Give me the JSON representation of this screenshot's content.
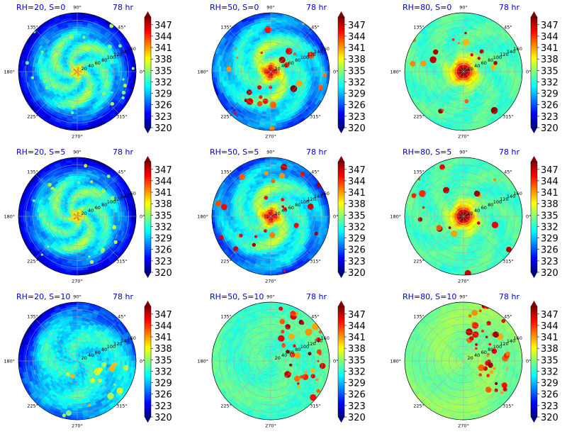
{
  "chart_data": [
    {
      "type": "heatmap",
      "title": "RH=20, S=0",
      "time_label": "78 hr",
      "rh": 20,
      "shear": 0,
      "theme": "dry"
    },
    {
      "type": "heatmap",
      "title": "RH=50, S=0",
      "time_label": "78 hr",
      "rh": 50,
      "shear": 0,
      "theme": "mid"
    },
    {
      "type": "heatmap",
      "title": "RH=80, S=0",
      "time_label": "78 hr",
      "rh": 80,
      "shear": 0,
      "theme": "wet"
    },
    {
      "type": "heatmap",
      "title": "RH=20, S=5",
      "time_label": "78 hr",
      "rh": 20,
      "shear": 5,
      "theme": "dry"
    },
    {
      "type": "heatmap",
      "title": "RH=50, S=5",
      "time_label": "78 hr",
      "rh": 50,
      "shear": 5,
      "theme": "mid"
    },
    {
      "type": "heatmap",
      "title": "RH=80, S=5",
      "time_label": "78 hr",
      "rh": 80,
      "shear": 5,
      "theme": "wet"
    },
    {
      "type": "heatmap",
      "title": "RH=20, S=10",
      "time_label": "78 hr",
      "rh": 20,
      "shear": 10,
      "theme": "dry_shear"
    },
    {
      "type": "heatmap",
      "title": "RH=50, S=10",
      "time_label": "78 hr",
      "rh": 50,
      "shear": 10,
      "theme": "mid_shear"
    },
    {
      "type": "heatmap",
      "title": "RH=80, S=10",
      "time_label": "78 hr",
      "rh": 80,
      "shear": 10,
      "theme": "wet_shear"
    }
  ],
  "polar_axis": {
    "angle_ticks": [
      "0°",
      "45°",
      "90°",
      "135°",
      "180°",
      "225°",
      "270°",
      "315°"
    ],
    "radial_ticks": [
      "20",
      "40",
      "60",
      "80",
      "100",
      "120",
      "140",
      "160"
    ]
  },
  "colorbar": {
    "ticks": [
      "320",
      "323",
      "326",
      "329",
      "332",
      "335",
      "338",
      "341",
      "344",
      "347"
    ],
    "min": 320,
    "max": 349,
    "colormap": "jet"
  },
  "colors": {
    "title": "#0000cc",
    "text": "#000000",
    "grid": "#a8a8a8"
  }
}
